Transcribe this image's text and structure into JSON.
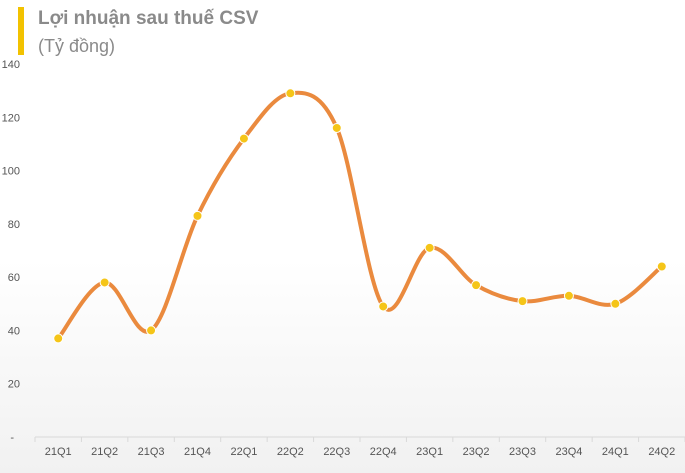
{
  "header": {
    "title": "Lợi nhuận sau thuế CSV",
    "subtitle": "(Tỷ đồng)"
  },
  "colors": {
    "accent_bar": "#f2c200",
    "line": "#ea8a3e",
    "marker": "#f5c518",
    "axis_text": "#555555"
  },
  "chart_data": {
    "type": "line",
    "title": "Lợi nhuận sau thuế CSV",
    "subtitle": "(Tỷ đồng)",
    "xlabel": "",
    "ylabel": "",
    "ylim": [
      0,
      140
    ],
    "yticks": [
      0,
      20,
      40,
      60,
      80,
      100,
      120,
      140
    ],
    "y_zero_label": "-",
    "categories": [
      "21Q1",
      "21Q2",
      "21Q3",
      "21Q4",
      "22Q1",
      "22Q2",
      "22Q3",
      "22Q4",
      "23Q1",
      "23Q2",
      "23Q3",
      "23Q4",
      "24Q1",
      "24Q2"
    ],
    "series": [
      {
        "values": [
          37,
          58,
          40,
          83,
          112,
          129,
          116,
          49,
          71,
          57,
          51,
          53,
          50,
          64
        ]
      }
    ],
    "smooth": true,
    "grid": false,
    "legend": "none"
  }
}
